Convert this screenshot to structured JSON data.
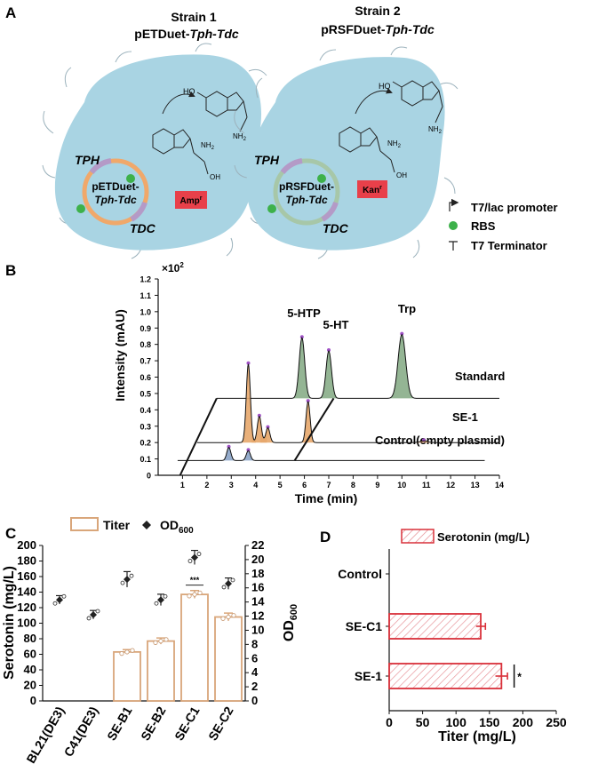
{
  "panel_a": {
    "label": "A",
    "strain1": {
      "title": "Strain 1",
      "plasmid_prefix": "pETDuet-",
      "plasmid_genes": "Tph-Tdc",
      "circle_line1": "pETDuet-",
      "circle_line2": "Tph-Tdc",
      "marker": "Amp",
      "marker_sup": "r"
    },
    "strain2": {
      "title": "Strain 2",
      "plasmid_prefix": "pRSFDuet-",
      "plasmid_genes": "Tph-Tdc",
      "circle_line1": "pRSFDuet-",
      "circle_line2": "Tph-Tdc",
      "marker": "Kan",
      "marker_sup": "r"
    },
    "gene_tph": "TPH",
    "gene_tdc": "TDC",
    "mol_nh2": "NH",
    "mol_nh2_sub": "2",
    "mol_ho": "HO",
    "mol_oh": "OH",
    "mol_o": "O",
    "mol_h": "H",
    "mol_n": "N",
    "legend": {
      "promoter": "T7/lac promoter",
      "rbs": "RBS",
      "terminator": "T7 Terminator"
    },
    "colors": {
      "cell": "#a9d4e3",
      "orange_ring": "#f0a86a",
      "green_ring": "#a7c7a8",
      "rbs": "#3db14a",
      "marker_box": "#e8404a"
    }
  },
  "panel_b": {
    "label": "B",
    "multiplier": "×10",
    "multiplier_exp": "2",
    "ylabel": "Intensity (mAU)",
    "xlabel": "Time (min)",
    "yticks": [
      "0",
      "0.1",
      "0.2",
      "0.3",
      "0.4",
      "0.5",
      "0.6",
      "0.7",
      "0.8",
      "0.9",
      "1.0",
      "1.1",
      "1.2"
    ],
    "xticks": [
      "1",
      "2",
      "3",
      "4",
      "5",
      "6",
      "7",
      "8",
      "9",
      "10",
      "11",
      "12",
      "13",
      "14"
    ],
    "peaks": {
      "htp": "5-HTP",
      "ht": "5-HT",
      "trp": "Trp"
    },
    "traces": {
      "standard": "Standard",
      "se1": "SE-1",
      "control": "Control(empty plasmid)"
    }
  },
  "panel_c": {
    "label": "C",
    "legend_titer": "Titer",
    "legend_od": "OD",
    "legend_od_sub": "600",
    "ylabel_left": "Serotonin (mg/L)",
    "ylabel_right": "OD",
    "ylabel_right_sub": "600",
    "significance": "***",
    "colors": {
      "bar_edge": "#d9a67a",
      "dot": "#222222"
    }
  },
  "panel_d": {
    "label": "D",
    "legend": "Serotonin (mg/L)",
    "xlabel": "Titer (mg/L)",
    "significance": "*",
    "colors": {
      "bar_edge": "#d9303a",
      "hatch": "#e58a90"
    }
  },
  "chart_data": [
    {
      "type": "line",
      "panel": "B",
      "title": "",
      "xlabel": "Time (min)",
      "ylabel": "Intensity (mAU)",
      "xlim": [
        0,
        14
      ],
      "ylim": [
        0,
        1.2
      ],
      "series": [
        {
          "name": "Standard",
          "baseline": 0.47,
          "peaks": [
            {
              "x": 5.9,
              "h": 0.37
            },
            {
              "x": 7.0,
              "h": 0.29
            },
            {
              "x": 10.0,
              "h": 0.39
            }
          ],
          "color": "#88ad88"
        },
        {
          "name": "SE-1",
          "baseline": 0.2,
          "peaks": [
            {
              "x": 3.7,
              "h": 0.48
            },
            {
              "x": 4.15,
              "h": 0.16
            },
            {
              "x": 4.5,
              "h": 0.09
            },
            {
              "x": 6.15,
              "h": 0.25
            },
            {
              "x": 10.9,
              "h": 0.01
            }
          ],
          "color": "#e7a76b"
        },
        {
          "name": "Control(empty plasmid)",
          "baseline": 0.09,
          "peaks": [
            {
              "x": 2.9,
              "h": 0.08
            },
            {
              "x": 3.7,
              "h": 0.06
            }
          ],
          "color": "#8aa3c6"
        }
      ]
    },
    {
      "type": "bar",
      "panel": "C",
      "categories": [
        "BL21(DE3)",
        "C41(DE3)",
        "SE-B1",
        "SE-B2",
        "SE-C1",
        "SE-C2"
      ],
      "series": [
        {
          "name": "Titer",
          "axis": "left",
          "values": [
            0,
            0,
            63,
            77,
            137,
            108
          ],
          "errors": [
            0,
            0,
            3,
            4,
            5,
            5
          ]
        },
        {
          "name": "OD600",
          "axis": "right",
          "values": [
            14.3,
            12.2,
            17.2,
            14.3,
            20.3,
            16.6
          ],
          "errors": [
            0.6,
            0.6,
            1.1,
            0.8,
            1.0,
            0.8
          ]
        }
      ],
      "ylabel": "Serotonin (mg/L)",
      "ylabel_right": "OD600",
      "ylim": [
        0,
        200
      ],
      "ylim_right": [
        0,
        22
      ],
      "yticks": [
        "0",
        "20",
        "40",
        "60",
        "80",
        "100",
        "120",
        "140",
        "160",
        "180",
        "200"
      ],
      "yticks_right": [
        "0",
        "2",
        "4",
        "6",
        "8",
        "10",
        "12",
        "14",
        "16",
        "18",
        "20",
        "22"
      ]
    },
    {
      "type": "bar",
      "panel": "D",
      "orientation": "horizontal",
      "categories": [
        "Control",
        "SE-C1",
        "SE-1"
      ],
      "values": [
        0,
        137,
        168
      ],
      "errors": [
        0,
        7,
        9
      ],
      "xlabel": "Titer (mg/L)",
      "xlim": [
        0,
        250
      ],
      "xticks": [
        "0",
        "50",
        "100",
        "150",
        "200",
        "250"
      ]
    }
  ]
}
